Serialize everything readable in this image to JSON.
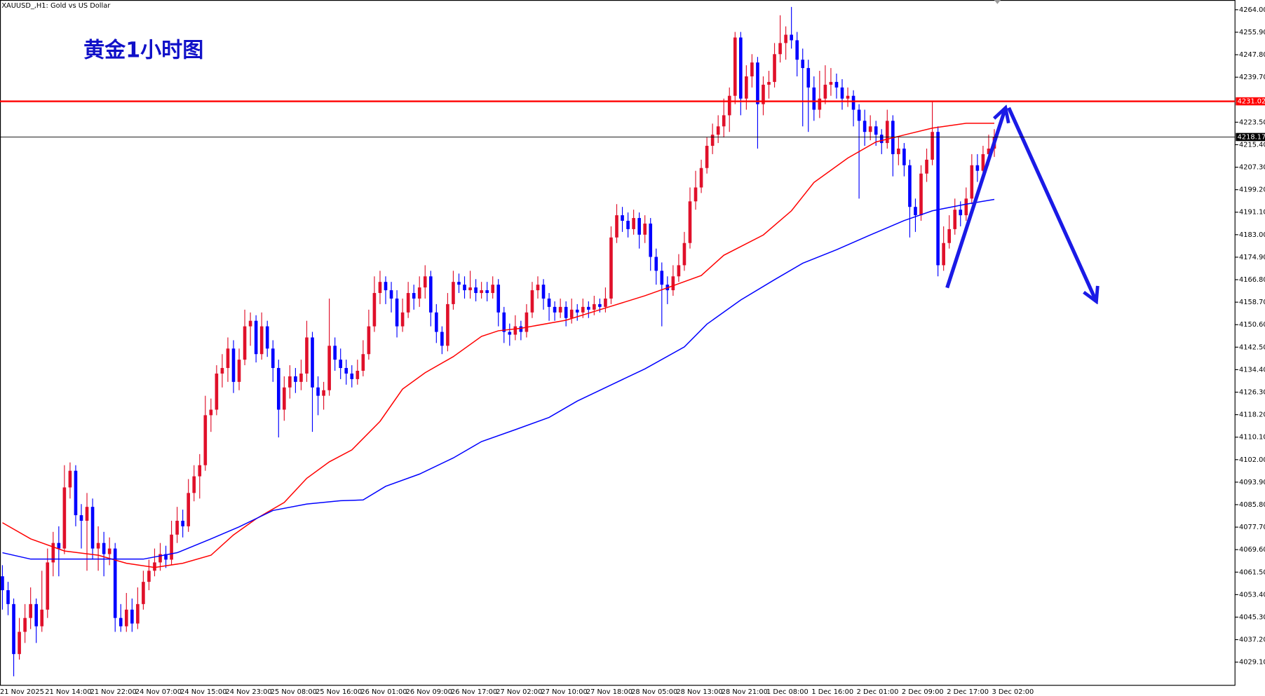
{
  "chart_data": {
    "type": "candlestick",
    "title": "黄金1小时图",
    "symbol_label": "XAUUSD_,H1:  Gold vs US Dollar",
    "up_color": "#e0102a",
    "down_color": "#0000ff",
    "ylim": [
      4020.9,
      4267.5
    ],
    "yticks": [
      {
        "value": 4264.0,
        "label": "4264.00"
      },
      {
        "value": 4255.9,
        "label": "4255.90"
      },
      {
        "value": 4247.8,
        "label": "4247.80"
      },
      {
        "value": 4239.7,
        "label": "4239.70"
      },
      {
        "value": 4223.5,
        "label": "4223.50"
      },
      {
        "value": 4215.4,
        "label": "4215.40"
      },
      {
        "value": 4207.3,
        "label": "4207.30"
      },
      {
        "value": 4199.2,
        "label": "4199.20"
      },
      {
        "value": 4191.1,
        "label": "4191.10"
      },
      {
        "value": 4183.0,
        "label": "4183.00"
      },
      {
        "value": 4174.9,
        "label": "4174.90"
      },
      {
        "value": 4166.8,
        "label": "4166.80"
      },
      {
        "value": 4158.7,
        "label": "4158.70"
      },
      {
        "value": 4150.6,
        "label": "4150.60"
      },
      {
        "value": 4142.5,
        "label": "4142.50"
      },
      {
        "value": 4134.4,
        "label": "4134.40"
      },
      {
        "value": 4126.3,
        "label": "4126.30"
      },
      {
        "value": 4118.2,
        "label": "4118.20"
      },
      {
        "value": 4110.1,
        "label": "4110.10"
      },
      {
        "value": 4102.0,
        "label": "4102.00"
      },
      {
        "value": 4093.9,
        "label": "4093.90"
      },
      {
        "value": 4085.8,
        "label": "4085.80"
      },
      {
        "value": 4077.7,
        "label": "4077.70"
      },
      {
        "value": 4069.6,
        "label": "4069.60"
      },
      {
        "value": 4061.5,
        "label": "4061.50"
      },
      {
        "value": 4053.4,
        "label": "4053.40"
      },
      {
        "value": 4045.3,
        "label": "4045.30"
      },
      {
        "value": 4037.2,
        "label": "4037.20"
      },
      {
        "value": 4029.1,
        "label": "4029.10"
      }
    ],
    "hlines": [
      {
        "value": 4231.02,
        "color": "#ff0000"
      },
      {
        "value": 4218.17,
        "color": "#000000"
      }
    ],
    "categories": [
      "21 Nov 2025",
      null,
      null,
      null,
      null,
      null,
      null,
      null,
      "21 Nov 14:00",
      null,
      null,
      null,
      null,
      null,
      null,
      null,
      "21 Nov 22:00",
      null,
      null,
      null,
      null,
      null,
      null,
      null,
      "24 Nov 07:00",
      null,
      null,
      null,
      null,
      null,
      null,
      null,
      "24 Nov 15:00",
      null,
      null,
      null,
      null,
      null,
      null,
      null,
      "24 Nov 23:00",
      null,
      null,
      null,
      null,
      null,
      null,
      null,
      "25 Nov 08:00",
      null,
      null,
      null,
      null,
      null,
      null,
      null,
      "25 Nov 16:00",
      null,
      null,
      null,
      null,
      null,
      null,
      null,
      "26 Nov 01:00",
      null,
      null,
      null,
      null,
      null,
      null,
      null,
      "26 Nov 09:00",
      null,
      null,
      null,
      null,
      null,
      null,
      null,
      "26 Nov 17:00",
      null,
      null,
      null,
      null,
      null,
      null,
      null,
      "27 Nov 02:00",
      null,
      null,
      null,
      null,
      null,
      null,
      null,
      "27 Nov 10:00",
      null,
      null,
      null,
      null,
      null,
      null,
      null,
      "27 Nov 18:00",
      null,
      null,
      null,
      null,
      null,
      null,
      null,
      "28 Nov 05:00",
      null,
      null,
      null,
      null,
      null,
      null,
      null,
      "28 Nov 13:00",
      null,
      null,
      null,
      null,
      null,
      null,
      null,
      "28 Nov 21:00",
      null,
      null,
      null,
      null,
      null,
      null,
      null,
      "1 Dec 08:00",
      null,
      null,
      null,
      null,
      null,
      null,
      null,
      "1 Dec 16:00",
      null,
      null,
      null,
      null,
      null,
      null,
      null,
      "2 Dec 01:00",
      null,
      null,
      null,
      null,
      null,
      null,
      null,
      "2 Dec 09:00",
      null,
      null,
      null,
      null,
      null,
      null,
      null,
      "2 Dec 17:00",
      null,
      null,
      null,
      null,
      null,
      null,
      null,
      "3 Dec 02:00"
    ],
    "ohlc": [
      [
        4060,
        4064,
        4048,
        4055
      ],
      [
        4055,
        4058,
        4046,
        4050
      ],
      [
        4050,
        4052,
        4024,
        4032
      ],
      [
        4032,
        4045,
        4030,
        4040
      ],
      [
        4040,
        4050,
        4036,
        4045
      ],
      [
        4045,
        4056,
        4041,
        4050
      ],
      [
        4050,
        4052,
        4036,
        4042
      ],
      [
        4042,
        4062,
        4040,
        4048
      ],
      [
        4048,
        4070,
        4045,
        4065
      ],
      [
        4065,
        4076,
        4060,
        4072
      ],
      [
        4072,
        4078,
        4060,
        4070
      ],
      [
        4070,
        4100,
        4068,
        4092
      ],
      [
        4092,
        4101,
        4088,
        4098
      ],
      [
        4098,
        4100,
        4078,
        4082
      ],
      [
        4082,
        4086,
        4070,
        4080
      ],
      [
        4080,
        4090,
        4062,
        4085
      ],
      [
        4085,
        4088,
        4066,
        4070
      ],
      [
        4070,
        4078,
        4062,
        4072
      ],
      [
        4072,
        4076,
        4060,
        4068
      ],
      [
        4068,
        4074,
        4064,
        4070
      ],
      [
        4070,
        4072,
        4040,
        4045
      ],
      [
        4045,
        4050,
        4040,
        4042
      ],
      [
        4042,
        4054,
        4040,
        4048
      ],
      [
        4048,
        4052,
        4040,
        4043
      ],
      [
        4043,
        4056,
        4041,
        4050
      ],
      [
        4050,
        4062,
        4048,
        4058
      ],
      [
        4058,
        4066,
        4055,
        4062
      ],
      [
        4062,
        4070,
        4060,
        4065
      ],
      [
        4065,
        4072,
        4062,
        4068
      ],
      [
        4068,
        4071,
        4063,
        4066
      ],
      [
        4066,
        4080,
        4064,
        4075
      ],
      [
        4075,
        4085,
        4072,
        4080
      ],
      [
        4080,
        4084,
        4074,
        4078
      ],
      [
        4078,
        4095,
        4076,
        4090
      ],
      [
        4090,
        4100,
        4087,
        4096
      ],
      [
        4096,
        4104,
        4088,
        4100
      ],
      [
        4100,
        4125,
        4098,
        4118
      ],
      [
        4118,
        4124,
        4112,
        4120
      ],
      [
        4120,
        4136,
        4118,
        4133
      ],
      [
        4133,
        4140,
        4128,
        4135
      ],
      [
        4135,
        4146,
        4130,
        4142
      ],
      [
        4142,
        4145,
        4126,
        4130
      ],
      [
        4130,
        4142,
        4127,
        4138
      ],
      [
        4138,
        4156,
        4136,
        4150
      ],
      [
        4150,
        4155,
        4143,
        4152
      ],
      [
        4152,
        4154,
        4137,
        4140
      ],
      [
        4140,
        4155,
        4138,
        4150
      ],
      [
        4150,
        4152,
        4139,
        4142
      ],
      [
        4142,
        4145,
        4130,
        4135
      ],
      [
        4135,
        4138,
        4110,
        4120
      ],
      [
        4120,
        4132,
        4116,
        4128
      ],
      [
        4128,
        4136,
        4124,
        4132
      ],
      [
        4132,
        4135,
        4126,
        4130
      ],
      [
        4130,
        4138,
        4127,
        4133
      ],
      [
        4133,
        4152,
        4130,
        4146
      ],
      [
        4146,
        4148,
        4112,
        4128
      ],
      [
        4128,
        4132,
        4118,
        4125
      ],
      [
        4125,
        4130,
        4120,
        4127
      ],
      [
        4127,
        4160,
        4125,
        4143
      ],
      [
        4143,
        4146,
        4134,
        4138
      ],
      [
        4138,
        4142,
        4131,
        4135
      ],
      [
        4135,
        4138,
        4129,
        4133
      ],
      [
        4133,
        4136,
        4128,
        4131
      ],
      [
        4131,
        4138,
        4129,
        4134
      ],
      [
        4134,
        4145,
        4132,
        4140
      ],
      [
        4140,
        4156,
        4138,
        4150
      ],
      [
        4150,
        4168,
        4148,
        4162
      ],
      [
        4162,
        4170,
        4158,
        4166
      ],
      [
        4166,
        4168,
        4158,
        4163
      ],
      [
        4163,
        4166,
        4155,
        4160
      ],
      [
        4160,
        4163,
        4146,
        4150
      ],
      [
        4150,
        4160,
        4148,
        4155
      ],
      [
        4155,
        4166,
        4153,
        4162
      ],
      [
        4162,
        4165,
        4156,
        4160
      ],
      [
        4160,
        4168,
        4157,
        4164
      ],
      [
        4164,
        4172,
        4160,
        4168
      ],
      [
        4168,
        4170,
        4150,
        4155
      ],
      [
        4155,
        4158,
        4144,
        4148
      ],
      [
        4148,
        4150,
        4140,
        4143
      ],
      [
        4143,
        4162,
        4141,
        4158
      ],
      [
        4158,
        4170,
        4156,
        4166
      ],
      [
        4166,
        4169,
        4162,
        4165
      ],
      [
        4165,
        4168,
        4160,
        4163
      ],
      [
        4163,
        4170,
        4160,
        4164
      ],
      [
        4164,
        4167,
        4159,
        4162
      ],
      [
        4162,
        4166,
        4160,
        4163
      ],
      [
        4163,
        4166,
        4159,
        4162
      ],
      [
        4162,
        4168,
        4160,
        4165
      ],
      [
        4165,
        4167,
        4150,
        4155
      ],
      [
        4155,
        4157,
        4144,
        4148
      ],
      [
        4148,
        4151,
        4143,
        4147
      ],
      [
        4147,
        4154,
        4145,
        4150
      ],
      [
        4150,
        4152,
        4145,
        4148
      ],
      [
        4148,
        4158,
        4146,
        4155
      ],
      [
        4155,
        4166,
        4153,
        4163
      ],
      [
        4163,
        4168,
        4160,
        4165
      ],
      [
        4165,
        4167,
        4156,
        4160
      ],
      [
        4160,
        4162,
        4152,
        4157
      ],
      [
        4157,
        4159,
        4152,
        4155
      ],
      [
        4155,
        4160,
        4153,
        4157
      ],
      [
        4157,
        4159,
        4150,
        4153
      ],
      [
        4153,
        4160,
        4151,
        4156
      ],
      [
        4156,
        4158,
        4152,
        4155
      ],
      [
        4155,
        4160,
        4153,
        4157
      ],
      [
        4157,
        4159,
        4153,
        4156
      ],
      [
        4156,
        4161,
        4154,
        4158
      ],
      [
        4158,
        4160,
        4155,
        4157
      ],
      [
        4157,
        4164,
        4155,
        4160
      ],
      [
        4160,
        4186,
        4158,
        4182
      ],
      [
        4182,
        4194,
        4180,
        4190
      ],
      [
        4190,
        4193,
        4184,
        4188
      ],
      [
        4188,
        4191,
        4182,
        4185
      ],
      [
        4185,
        4192,
        4183,
        4189
      ],
      [
        4189,
        4191,
        4178,
        4183
      ],
      [
        4183,
        4190,
        4180,
        4187
      ],
      [
        4187,
        4189,
        4170,
        4175
      ],
      [
        4175,
        4178,
        4165,
        4170
      ],
      [
        4170,
        4173,
        4150,
        4165
      ],
      [
        4165,
        4168,
        4158,
        4163
      ],
      [
        4163,
        4172,
        4161,
        4168
      ],
      [
        4168,
        4176,
        4166,
        4172
      ],
      [
        4172,
        4184,
        4170,
        4180
      ],
      [
        4180,
        4200,
        4178,
        4195
      ],
      [
        4195,
        4206,
        4192,
        4200
      ],
      [
        4200,
        4210,
        4198,
        4207
      ],
      [
        4207,
        4218,
        4205,
        4215
      ],
      [
        4215,
        4223,
        4212,
        4219
      ],
      [
        4219,
        4226,
        4216,
        4222
      ],
      [
        4222,
        4232,
        4218,
        4226
      ],
      [
        4226,
        4236,
        4220,
        4233
      ],
      [
        4233,
        4256,
        4230,
        4254
      ],
      [
        4254,
        4256,
        4226,
        4232
      ],
      [
        4232,
        4244,
        4228,
        4240
      ],
      [
        4240,
        4248,
        4236,
        4245
      ],
      [
        4245,
        4247,
        4214,
        4230
      ],
      [
        4230,
        4240,
        4226,
        4237
      ],
      [
        4237,
        4242,
        4232,
        4238
      ],
      [
        4238,
        4252,
        4236,
        4248
      ],
      [
        4248,
        4262,
        4245,
        4252
      ],
      [
        4252,
        4258,
        4246,
        4255
      ],
      [
        4255,
        4265,
        4250,
        4253
      ],
      [
        4253,
        4256,
        4240,
        4246
      ],
      [
        4246,
        4250,
        4222,
        4243
      ],
      [
        4243,
        4246,
        4220,
        4236
      ],
      [
        4236,
        4240,
        4224,
        4228
      ],
      [
        4228,
        4242,
        4225,
        4232
      ],
      [
        4232,
        4244,
        4230,
        4237
      ],
      [
        4237,
        4243,
        4233,
        4238
      ],
      [
        4238,
        4241,
        4232,
        4236
      ],
      [
        4236,
        4239,
        4228,
        4232
      ],
      [
        4232,
        4236,
        4229,
        4233
      ],
      [
        4233,
        4235,
        4222,
        4228
      ],
      [
        4228,
        4230,
        4196,
        4224
      ],
      [
        4224,
        4228,
        4215,
        4220
      ],
      [
        4220,
        4226,
        4217,
        4222
      ],
      [
        4222,
        4224,
        4215,
        4219
      ],
      [
        4219,
        4221,
        4212,
        4216
      ],
      [
        4216,
        4228,
        4214,
        4224
      ],
      [
        4224,
        4226,
        4204,
        4212
      ],
      [
        4212,
        4218,
        4208,
        4214
      ],
      [
        4214,
        4216,
        4204,
        4208
      ],
      [
        4208,
        4210,
        4182,
        4193
      ],
      [
        4193,
        4196,
        4184,
        4190
      ],
      [
        4190,
        4208,
        4188,
        4205
      ],
      [
        4205,
        4214,
        4202,
        4210
      ],
      [
        4210,
        4231,
        4208,
        4220
      ],
      [
        4220,
        4222,
        4168,
        4172
      ],
      [
        4172,
        4186,
        4170,
        4180
      ],
      [
        4180,
        4190,
        4178,
        4185
      ],
      [
        4185,
        4196,
        4183,
        4192
      ],
      [
        4192,
        4195,
        4186,
        4190
      ],
      [
        4190,
        4200,
        4188,
        4196
      ],
      [
        4196,
        4212,
        4194,
        4208
      ],
      [
        4208,
        4212,
        4202,
        4206
      ],
      [
        4206,
        4215,
        4204,
        4212
      ],
      [
        4212,
        4219,
        4208,
        4214
      ],
      [
        4214,
        4221,
        4211,
        4218.17
      ]
    ],
    "lines": [
      {
        "color": "#ff0000",
        "x": [
          0,
          5,
          11,
          17,
          22,
          27,
          32,
          37,
          41,
          45,
          50,
          54,
          58,
          62,
          67,
          71,
          75,
          80,
          85,
          88,
          92,
          100,
          107,
          114,
          118,
          124,
          128,
          135,
          140,
          144,
          150,
          155,
          161,
          165,
          171,
          176
        ],
        "values": [
          4079.3,
          4073.5,
          4069.1,
          4067.6,
          4064.7,
          4063.2,
          4064.7,
          4067.6,
          4074.9,
          4080.7,
          4086.6,
          4095.3,
          4101.2,
          4105.5,
          4115.8,
          4127.4,
          4133.3,
          4139.1,
          4146.4,
          4148.4,
          4149.3,
          4152.2,
          4156.6,
          4161.0,
          4163.9,
          4168.3,
          4175.6,
          4182.9,
          4191.6,
          4201.8,
          4210.6,
          4216.4,
          4219.4,
          4221.4,
          4223.1,
          4223.1
        ]
      },
      {
        "color": "#0000ff",
        "x": [
          0,
          5,
          11,
          18,
          25,
          31,
          37,
          42,
          48,
          54,
          60,
          64,
          68,
          74,
          80,
          85,
          91,
          97,
          102,
          108,
          114,
          121,
          125,
          131,
          137,
          142,
          148,
          154,
          160,
          165,
          171,
          176
        ],
        "values": [
          4068.5,
          4066.2,
          4066.2,
          4066.2,
          4066.2,
          4068.5,
          4073.5,
          4077.8,
          4083.7,
          4086.0,
          4087.2,
          4087.5,
          4092.4,
          4096.8,
          4102.6,
          4108.5,
          4112.8,
          4117.2,
          4123.1,
          4128.9,
          4134.7,
          4142.6,
          4150.8,
          4159.5,
          4166.8,
          4172.7,
          4177.6,
          4182.9,
          4188.1,
          4191.6,
          4194.0,
          4195.7
        ]
      }
    ]
  }
}
